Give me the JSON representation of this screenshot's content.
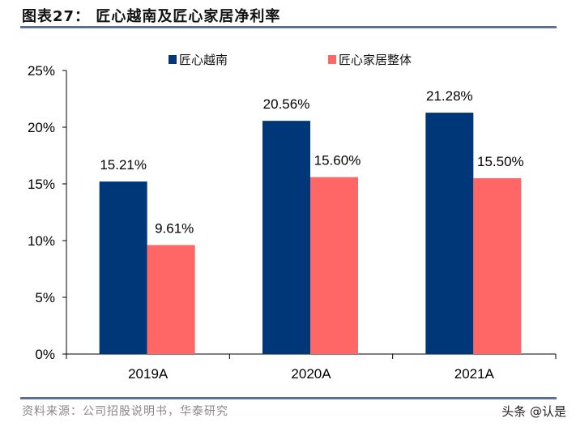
{
  "title": "图表27： 匠心越南及匠心家居净利率",
  "source": "资料来源：公司招股说明书，华泰研究",
  "watermark": "头条 @认是",
  "chart_data": {
    "type": "bar",
    "categories": [
      "2019A",
      "2020A",
      "2021A"
    ],
    "series": [
      {
        "name": "匠心越南",
        "values": [
          15.21,
          20.56,
          21.28
        ],
        "labels": [
          "15.21%",
          "20.56%",
          "21.28%"
        ],
        "color": "#003778"
      },
      {
        "name": "匠心家居整体",
        "values": [
          9.61,
          15.6,
          15.5
        ],
        "labels": [
          "9.61%",
          "15.60%",
          "15.50%"
        ],
        "color": "#ff6666"
      }
    ],
    "ylim": [
      0,
      25
    ],
    "yticks": [
      "0%",
      "5%",
      "10%",
      "15%",
      "20%",
      "25%"
    ],
    "legend": "top",
    "grid": false
  }
}
